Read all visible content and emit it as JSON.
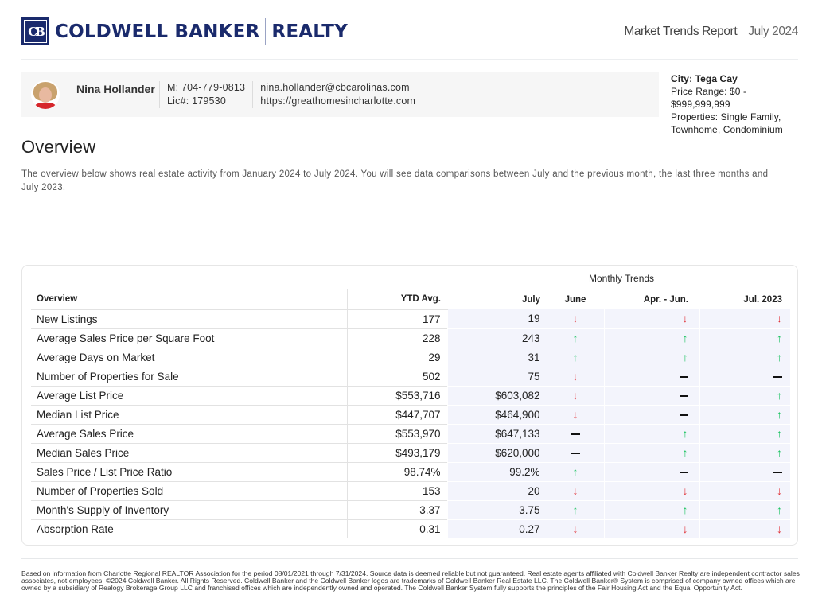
{
  "header": {
    "brand_left": "COLDWELL BANKER",
    "brand_right": "REALTY",
    "logo_mark": "CB",
    "report_title": "Market Trends Report",
    "report_month": "July 2024"
  },
  "agent": {
    "name": "Nina Hollander",
    "mobile": "M: 704-779-0813",
    "license": "Lic#: 179530",
    "email": "nina.hollander@cbcarolinas.com",
    "website": "https://greathomesincharlotte.com"
  },
  "criteria": {
    "city": "City: Tega Cay",
    "price_range_line1": "Price Range: $0 -",
    "price_range_line2": "$999,999,999",
    "properties_line1": "Properties: Single Family,",
    "properties_line2": "Townhome, Condominium"
  },
  "overview": {
    "title": "Overview",
    "description": "The overview below shows real estate activity from January 2024 to July 2024. You will see data comparisons between July and the previous month, the last three months and July 2023."
  },
  "table": {
    "group_header": "Monthly Trends",
    "columns": [
      "Overview",
      "YTD Avg.",
      "July",
      "June",
      "Apr. - Jun.",
      "Jul. 2023"
    ],
    "colors": {
      "up": "#18c25e",
      "down": "#e0343a",
      "flat": "#111111",
      "shade": "#f3f4fc"
    },
    "rows": [
      {
        "label": "New Listings",
        "ytd": "177",
        "july": "19",
        "june": "down",
        "apr_jun": "down",
        "jul_2023": "down"
      },
      {
        "label": "Average Sales Price per Square Foot",
        "ytd": "228",
        "july": "243",
        "june": "up",
        "apr_jun": "up",
        "jul_2023": "up"
      },
      {
        "label": "Average Days on Market",
        "ytd": "29",
        "july": "31",
        "june": "up",
        "apr_jun": "up",
        "jul_2023": "up"
      },
      {
        "label": "Number of Properties for Sale",
        "ytd": "502",
        "july": "75",
        "june": "down",
        "apr_jun": "flat",
        "jul_2023": "flat"
      },
      {
        "label": "Average List Price",
        "ytd": "$553,716",
        "july": "$603,082",
        "june": "down",
        "apr_jun": "flat",
        "jul_2023": "up"
      },
      {
        "label": "Median List Price",
        "ytd": "$447,707",
        "july": "$464,900",
        "june": "down",
        "apr_jun": "flat",
        "jul_2023": "up"
      },
      {
        "label": "Average Sales Price",
        "ytd": "$553,970",
        "july": "$647,133",
        "june": "flat",
        "apr_jun": "up",
        "jul_2023": "up"
      },
      {
        "label": "Median Sales Price",
        "ytd": "$493,179",
        "july": "$620,000",
        "june": "flat",
        "apr_jun": "up",
        "jul_2023": "up"
      },
      {
        "label": "Sales Price / List Price Ratio",
        "ytd": "98.74%",
        "july": "99.2%",
        "june": "up",
        "apr_jun": "flat",
        "jul_2023": "flat"
      },
      {
        "label": "Number of Properties Sold",
        "ytd": "153",
        "july": "20",
        "june": "down",
        "apr_jun": "down",
        "jul_2023": "down"
      },
      {
        "label": "Month's Supply of Inventory",
        "ytd": "3.37",
        "july": "3.75",
        "june": "up",
        "apr_jun": "up",
        "jul_2023": "up"
      },
      {
        "label": "Absorption Rate",
        "ytd": "0.31",
        "july": "0.27",
        "june": "down",
        "apr_jun": "down",
        "jul_2023": "down"
      }
    ]
  },
  "footer": {
    "disclaimer": "Based on information from Charlotte Regional REALTOR Association for the period 08/01/2021 through 7/31/2024. Source data is deemed reliable but not guaranteed. Real estate agents affiliated with Coldwell Banker Realty are independent contractor sales associates, not employees. ©2024 Coldwell Banker. All Rights Reserved. Coldwell Banker and the Coldwell Banker logos are trademarks of Coldwell Banker Real Estate LLC. The Coldwell Banker® System is comprised of company owned offices which are owned by a subsidiary of Realogy Brokerage Group LLC and franchised offices which are independently owned and operated. The Coldwell Banker System fully supports the principles of the Fair Housing Act and the Equal Opportunity Act."
  }
}
